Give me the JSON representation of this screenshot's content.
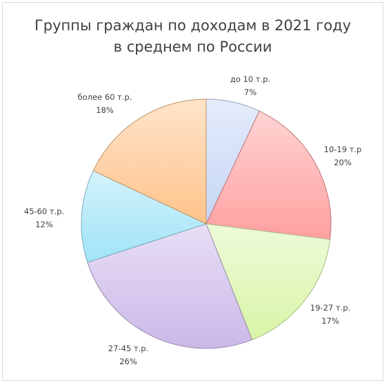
{
  "chart_data": {
    "type": "pie",
    "title_lines": [
      "Группы граждан по доходам в 2021 году",
      "в среднем по России"
    ],
    "categories": [
      "до 10 т.р.",
      "10-19 т.р",
      "19-27 т.р.",
      "27-45 т.р.",
      "45-60 т.р.",
      "более 60 т.р."
    ],
    "values": [
      7,
      20,
      17,
      26,
      12,
      18
    ],
    "value_labels": [
      "7%",
      "20%",
      "17%",
      "26%",
      "12%",
      "18%"
    ],
    "colors": [
      "#c5d5f5",
      "#ff9f9f",
      "#d9f5a8",
      "#cbb8e8",
      "#9fe4f7",
      "#ffc38a"
    ],
    "legend": "none"
  }
}
